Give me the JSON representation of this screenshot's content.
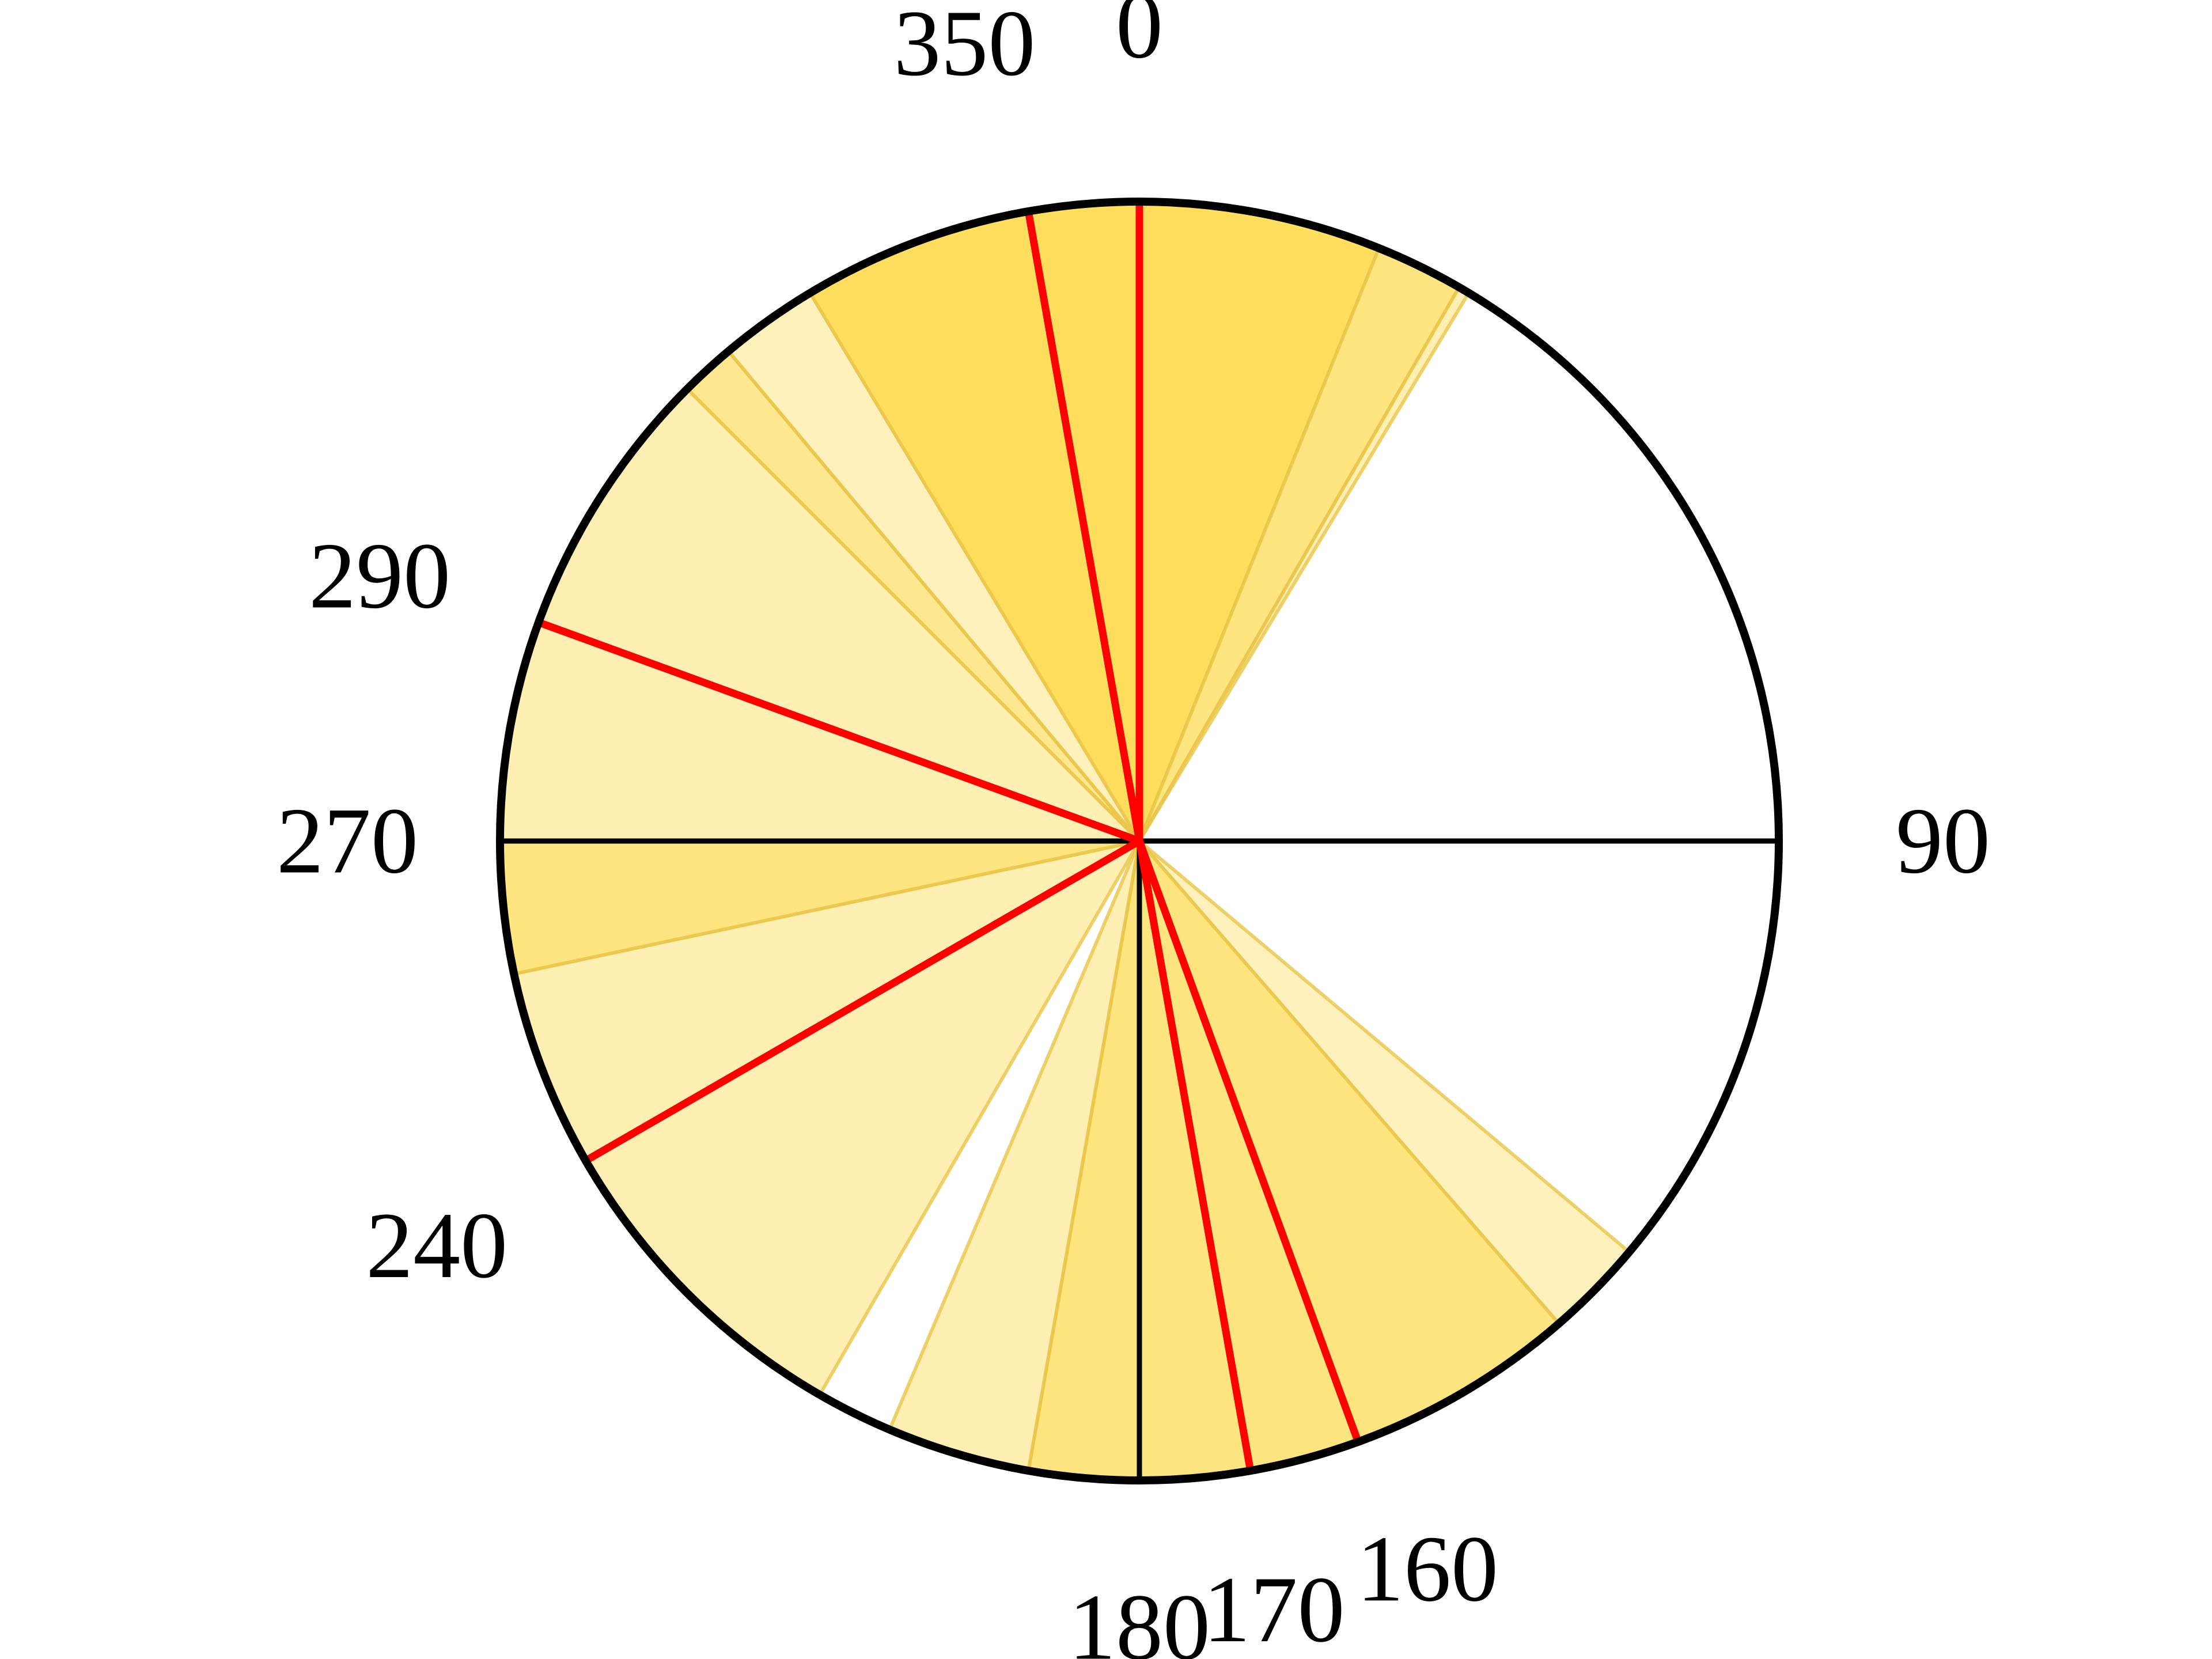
{
  "diagram": {
    "type": "polar-sector-diagram",
    "angle_convention": "degrees clockwise from top",
    "sectors": [
      {
        "start": 0,
        "end": 22,
        "color": "#FFDC55",
        "opacity": 0.95
      },
      {
        "start": 22,
        "end": 30,
        "color": "#FFDC55",
        "opacity": 0.75
      },
      {
        "start": 30,
        "end": 31,
        "color": "#FFDC55",
        "opacity": 0.45
      },
      {
        "start": 130,
        "end": 139,
        "color": "#FFDC55",
        "opacity": 0.4
      },
      {
        "start": 139,
        "end": 160,
        "color": "#FFDC55",
        "opacity": 0.75
      },
      {
        "start": 160,
        "end": 170,
        "color": "#FFDC55",
        "opacity": 0.75
      },
      {
        "start": 170,
        "end": 180,
        "color": "#FFDC55",
        "opacity": 0.75
      },
      {
        "start": 180,
        "end": 190,
        "color": "#FFDC55",
        "opacity": 0.75
      },
      {
        "start": 190,
        "end": 203,
        "color": "#FFDC55",
        "opacity": 0.45
      },
      {
        "start": 210,
        "end": 240,
        "color": "#FFDC55",
        "opacity": 0.45
      },
      {
        "start": 240,
        "end": 258,
        "color": "#FFDC55",
        "opacity": 0.45
      },
      {
        "start": 258,
        "end": 270,
        "color": "#FFDC55",
        "opacity": 0.75
      },
      {
        "start": 270,
        "end": 290,
        "color": "#FFDC55",
        "opacity": 0.45
      },
      {
        "start": 290,
        "end": 315,
        "color": "#FFDC55",
        "opacity": 0.45
      },
      {
        "start": 315,
        "end": 320,
        "color": "#FFDC55",
        "opacity": 0.65
      },
      {
        "start": 320,
        "end": 329,
        "color": "#FFDC55",
        "opacity": 0.4
      },
      {
        "start": 329,
        "end": 350,
        "color": "#FFDC55",
        "opacity": 0.95
      },
      {
        "start": 350,
        "end": 360,
        "color": "#FFDC55",
        "opacity": 0.95
      }
    ],
    "red_lines": [
      0,
      350,
      290,
      240,
      170,
      160
    ],
    "black_lines": [
      90,
      270,
      180
    ],
    "colors": {
      "red_line": "#FF0000",
      "black_line": "#000000",
      "circle": "#000000",
      "sector_edge": "#E8C64A"
    },
    "labels": [
      {
        "angle": 0,
        "text": "0"
      },
      {
        "angle": 350,
        "text": "350"
      },
      {
        "angle": 290,
        "text": "290"
      },
      {
        "angle": 270,
        "text": "270"
      },
      {
        "angle": 240,
        "text": "240"
      },
      {
        "angle": 180,
        "text": "180"
      },
      {
        "angle": 170,
        "text": "170"
      },
      {
        "angle": 160,
        "text": "160"
      },
      {
        "angle": 90,
        "text": "90"
      }
    ]
  }
}
